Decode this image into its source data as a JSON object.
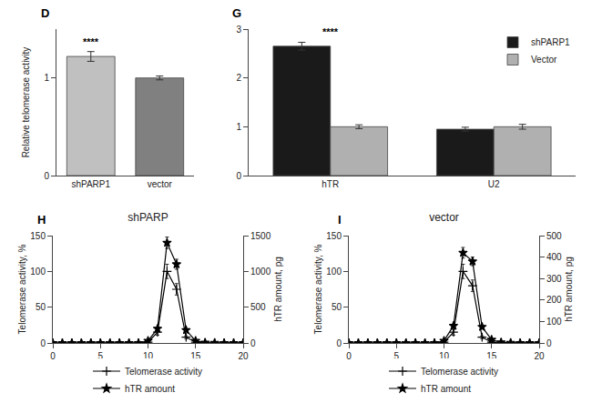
{
  "chart_data": [
    {
      "type": "bar",
      "categories": [
        "shPARP1",
        "vector"
      ],
      "values": [
        1.22,
        1.0
      ],
      "errors": [
        0.05,
        0.02
      ],
      "colors": [
        "#c0c0c0",
        "#808080"
      ],
      "ylabel": "Relative telomerase activity",
      "ylim": [
        0,
        1.5
      ],
      "yticks": [
        0,
        1
      ],
      "grid": false,
      "annotations": [
        {
          "text": "D"
        },
        {
          "text": "****",
          "x": 0
        }
      ]
    },
    {
      "type": "bar",
      "categories": [
        "hTR",
        "U2"
      ],
      "series": [
        {
          "name": "shPARP1",
          "color": "#1a1a1a",
          "values": [
            2.65,
            0.95
          ],
          "errors": [
            0.08,
            0.04
          ]
        },
        {
          "name": "Vector",
          "color": "#b0b0b0",
          "values": [
            1.0,
            1.0
          ],
          "errors": [
            0.04,
            0.05
          ]
        }
      ],
      "ylim": [
        0,
        3.0
      ],
      "yticks": [
        0,
        1,
        2,
        3
      ],
      "legend": "upper right",
      "grid": false,
      "annotations": [
        {
          "text": "G"
        },
        {
          "text": "****",
          "x": 0
        }
      ]
    },
    {
      "type": "line",
      "title": "shPARP",
      "x": [
        0,
        1,
        2,
        3,
        4,
        5,
        6,
        7,
        8,
        9,
        10,
        11,
        12,
        13,
        14,
        15,
        16,
        17,
        18,
        19,
        20
      ],
      "series": [
        {
          "name": "Telomerase activity",
          "color": "#000000",
          "marker": "cross",
          "line_style": "solid",
          "values": [
            0,
            0,
            0,
            0,
            0,
            0,
            0,
            0,
            0,
            0,
            1,
            15,
            100,
            75,
            8,
            1,
            0,
            0,
            0,
            0,
            0
          ],
          "errors": [
            0,
            0,
            0,
            0,
            0,
            0,
            0,
            0,
            0,
            0,
            0.5,
            4,
            10,
            8,
            2,
            0.5,
            0,
            0,
            0,
            0,
            0
          ]
        },
        {
          "name": "hTR amount",
          "color": "#000000",
          "marker": "star",
          "line_style": "solid",
          "axis": "y2",
          "values": [
            0,
            0,
            0,
            0,
            0,
            0,
            0,
            0,
            0,
            0,
            30,
            200,
            1400,
            1100,
            180,
            30,
            5,
            2,
            0,
            0,
            0
          ],
          "errors": [
            0,
            0,
            0,
            0,
            0,
            0,
            0,
            0,
            0,
            0,
            5,
            20,
            80,
            70,
            20,
            5,
            2,
            1,
            0,
            0,
            0
          ]
        }
      ],
      "xlim": [
        0,
        20
      ],
      "xticks": [
        0,
        5,
        10,
        15,
        20
      ],
      "ylim": [
        0,
        150
      ],
      "yticks": [
        0,
        50,
        100,
        150
      ],
      "y2lim": [
        0,
        1500
      ],
      "y2ticks": [
        0,
        500,
        1000,
        1500
      ],
      "ylabel": "Telomerase activity, %",
      "y2label": "hTR amount, pg",
      "legend": "bottom",
      "grid": false,
      "annotations": [
        {
          "text": "H"
        }
      ]
    },
    {
      "type": "line",
      "title": "vector",
      "x": [
        0,
        1,
        2,
        3,
        4,
        5,
        6,
        7,
        8,
        9,
        10,
        11,
        12,
        13,
        14,
        15,
        16,
        17,
        18,
        19,
        20
      ],
      "series": [
        {
          "name": "Telomerase activity",
          "color": "#000000",
          "marker": "cross",
          "line_style": "solid",
          "values": [
            0,
            0,
            0,
            0,
            0,
            0,
            0,
            0,
            0,
            0,
            1,
            15,
            100,
            80,
            8,
            1,
            0,
            0,
            0,
            0,
            0
          ],
          "errors": [
            0,
            0,
            0,
            0,
            0,
            0,
            0,
            0,
            0,
            0,
            0.5,
            4,
            10,
            8,
            2,
            0.5,
            0,
            0,
            0,
            0,
            0
          ]
        },
        {
          "name": "hTR amount",
          "color": "#000000",
          "marker": "star",
          "line_style": "solid",
          "axis": "y2",
          "values": [
            0,
            0,
            0,
            0,
            0,
            0,
            0,
            0,
            0,
            0,
            10,
            80,
            420,
            380,
            75,
            15,
            3,
            1,
            0,
            0,
            0
          ],
          "errors": [
            0,
            0,
            0,
            0,
            0,
            0,
            0,
            0,
            0,
            0,
            2,
            8,
            25,
            20,
            8,
            3,
            1,
            0.5,
            0,
            0,
            0
          ]
        }
      ],
      "xlim": [
        0,
        20
      ],
      "xticks": [
        0,
        5,
        10,
        15,
        20
      ],
      "ylim": [
        0,
        150
      ],
      "yticks": [
        0,
        50,
        100,
        150
      ],
      "y2lim": [
        0,
        500
      ],
      "y2ticks": [
        0,
        100,
        200,
        300,
        400,
        500
      ],
      "ylabel": "Telomerase activity, %",
      "y2label": "hTR amount, pg",
      "legend": "bottom",
      "grid": false,
      "annotations": [
        {
          "text": "I"
        }
      ]
    }
  ]
}
